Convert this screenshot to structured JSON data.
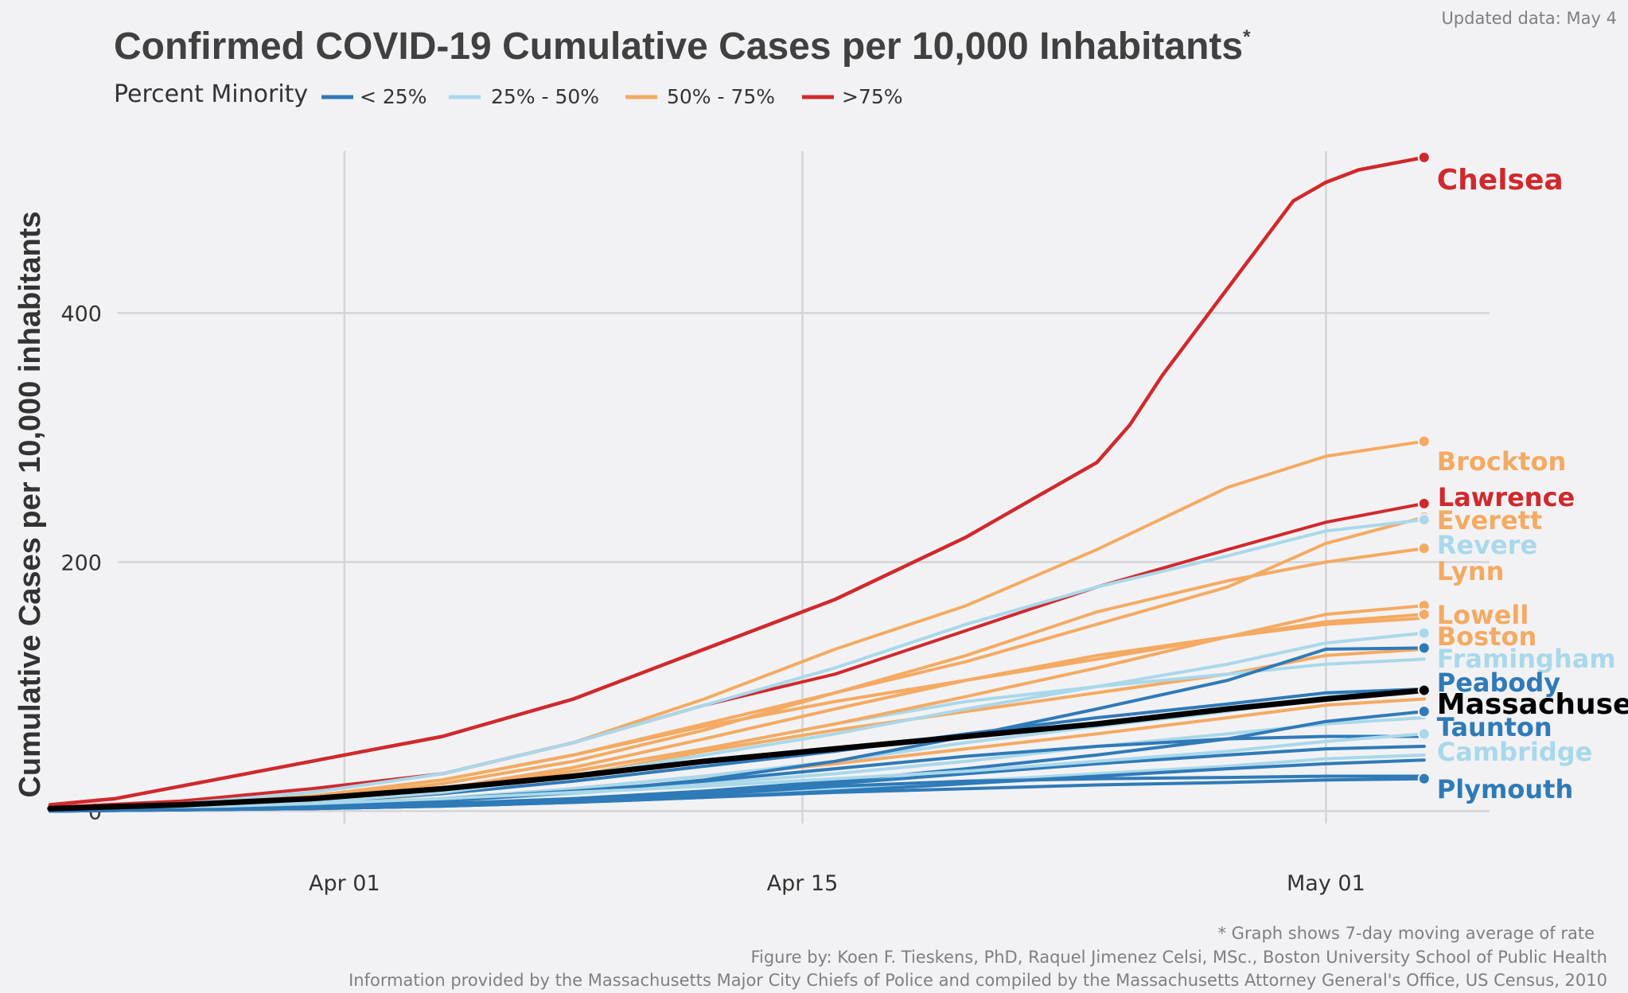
{
  "updated": "Updated data: May 4",
  "title": "Confirmed COVID-19 Cumulative Cases per 10,000 Inhabitants",
  "title_marker": "*",
  "legend": {
    "title": "Percent Minority",
    "entries": [
      {
        "label": "< 25%",
        "color": "#2f7ab8"
      },
      {
        "label": "25% - 50%",
        "color": "#a9d8ea"
      },
      {
        "label": "50% - 75%",
        "color": "#f4aa62"
      },
      {
        "label": ">75%",
        "color": "#d0292d"
      }
    ]
  },
  "footnotes": {
    "line1": "* Graph shows 7-day moving average of rate",
    "line2": "Figure by: Koen F. Tieskens, PhD, Raquel Jimenez Celsi, MSc., Boston University School of Public Health",
    "line3": "Information provided by the Massachusetts Major City Chiefs of Police and compiled by the Massachusetts Attorney General's Office, US Census, 2010"
  },
  "chart_data": {
    "type": "line",
    "title": "Confirmed COVID-19 Cumulative Cases per 10,000 Inhabitants",
    "xlabel": "",
    "ylabel": "Cumulative Cases per 10,000 inhabitants",
    "x_range": [
      "2020-03-25",
      "2020-05-06"
    ],
    "x_ticks": [
      {
        "date": "2020-04-01",
        "label": "Apr 01"
      },
      {
        "date": "2020-04-15",
        "label": "Apr 15"
      },
      {
        "date": "2020-05-01",
        "label": "May 01"
      }
    ],
    "ylim": [
      -10,
      530
    ],
    "y_ticks": [
      0,
      200,
      400
    ],
    "grid": true,
    "legend_position": "top-left",
    "labeled_series": [
      {
        "name": "Chelsea",
        "group": ">75%",
        "color": "#d0292d",
        "x": [
          "2020-03-23",
          "2020-03-25",
          "2020-03-27",
          "2020-03-29",
          "2020-03-31",
          "2020-04-02",
          "2020-04-04",
          "2020-04-06",
          "2020-04-08",
          "2020-04-10",
          "2020-04-12",
          "2020-04-14",
          "2020-04-16",
          "2020-04-18",
          "2020-04-20",
          "2020-04-22",
          "2020-04-24",
          "2020-04-25",
          "2020-04-26",
          "2020-04-28",
          "2020-04-30",
          "2020-05-01",
          "2020-05-02",
          "2020-05-04"
        ],
        "y": [
          5,
          10,
          20,
          30,
          40,
          50,
          60,
          75,
          90,
          110,
          130,
          150,
          170,
          195,
          220,
          250,
          280,
          310,
          350,
          420,
          490,
          505,
          515,
          525
        ]
      },
      {
        "name": "Brockton",
        "group": "50% - 75%",
        "color": "#f4aa62",
        "x": [
          "2020-03-23",
          "2020-03-27",
          "2020-03-31",
          "2020-04-04",
          "2020-04-08",
          "2020-04-12",
          "2020-04-16",
          "2020-04-20",
          "2020-04-24",
          "2020-04-28",
          "2020-05-01",
          "2020-05-04"
        ],
        "y": [
          2,
          6,
          15,
          30,
          55,
          90,
          130,
          165,
          210,
          260,
          285,
          297
        ]
      },
      {
        "name": "Lawrence",
        "group": ">75%",
        "color": "#d0292d",
        "x": [
          "2020-03-23",
          "2020-03-27",
          "2020-03-31",
          "2020-04-04",
          "2020-04-08",
          "2020-04-12",
          "2020-04-16",
          "2020-04-20",
          "2020-04-24",
          "2020-04-28",
          "2020-05-01",
          "2020-05-04"
        ],
        "y": [
          3,
          8,
          18,
          30,
          55,
          85,
          110,
          145,
          180,
          210,
          232,
          247
        ]
      },
      {
        "name": "Everett",
        "group": "50% - 75%",
        "color": "#f4aa62",
        "x": [
          "2020-03-23",
          "2020-03-27",
          "2020-03-31",
          "2020-04-04",
          "2020-04-08",
          "2020-04-12",
          "2020-04-16",
          "2020-04-20",
          "2020-04-24",
          "2020-04-28",
          "2020-05-01",
          "2020-05-04"
        ],
        "y": [
          2,
          5,
          12,
          25,
          45,
          70,
          95,
          120,
          150,
          180,
          215,
          236
        ]
      },
      {
        "name": "Revere",
        "group": "25% - 50%",
        "color": "#a9d8ea",
        "x": [
          "2020-03-23",
          "2020-03-27",
          "2020-03-31",
          "2020-04-04",
          "2020-04-08",
          "2020-04-12",
          "2020-04-16",
          "2020-04-20",
          "2020-04-24",
          "2020-04-28",
          "2020-05-01",
          "2020-05-04"
        ],
        "y": [
          2,
          6,
          15,
          30,
          55,
          85,
          115,
          150,
          180,
          205,
          225,
          234
        ]
      },
      {
        "name": "Lynn",
        "group": "50% - 75%",
        "color": "#f4aa62",
        "x": [
          "2020-03-23",
          "2020-03-27",
          "2020-03-31",
          "2020-04-04",
          "2020-04-08",
          "2020-04-12",
          "2020-04-16",
          "2020-04-20",
          "2020-04-24",
          "2020-04-28",
          "2020-05-01",
          "2020-05-04"
        ],
        "y": [
          2,
          4,
          10,
          22,
          40,
          65,
          95,
          125,
          160,
          185,
          200,
          211
        ]
      },
      {
        "name": "Lowell",
        "group": "50% - 75%",
        "color": "#f4aa62",
        "x": [
          "2020-03-23",
          "2020-03-27",
          "2020-03-31",
          "2020-04-04",
          "2020-04-08",
          "2020-04-12",
          "2020-04-16",
          "2020-04-20",
          "2020-04-24",
          "2020-04-28",
          "2020-05-01",
          "2020-05-04"
        ],
        "y": [
          1,
          3,
          8,
          18,
          32,
          50,
          70,
          92,
          115,
          140,
          158,
          165
        ]
      },
      {
        "name": "Boston",
        "group": "50% - 75%",
        "color": "#f4aa62",
        "x": [
          "2020-03-23",
          "2020-03-27",
          "2020-03-31",
          "2020-04-04",
          "2020-04-08",
          "2020-04-12",
          "2020-04-16",
          "2020-04-20",
          "2020-04-24",
          "2020-04-28",
          "2020-05-01",
          "2020-05-04"
        ],
        "y": [
          2,
          5,
          12,
          25,
          45,
          68,
          88,
          105,
          122,
          140,
          152,
          158
        ]
      },
      {
        "name": "Framingham",
        "group": "25% - 50%",
        "color": "#a9d8ea",
        "x": [
          "2020-03-23",
          "2020-03-27",
          "2020-03-31",
          "2020-04-04",
          "2020-04-08",
          "2020-04-12",
          "2020-04-16",
          "2020-04-20",
          "2020-04-24",
          "2020-04-28",
          "2020-05-01",
          "2020-05-04"
        ],
        "y": [
          1,
          3,
          7,
          15,
          28,
          45,
          62,
          82,
          100,
          118,
          135,
          143
        ]
      },
      {
        "name": "Peabody",
        "group": "< 25%",
        "color": "#2f7ab8",
        "x": [
          "2020-03-23",
          "2020-03-27",
          "2020-03-31",
          "2020-04-04",
          "2020-04-08",
          "2020-04-12",
          "2020-04-16",
          "2020-04-20",
          "2020-04-24",
          "2020-04-28",
          "2020-05-01",
          "2020-05-04"
        ],
        "y": [
          0,
          2,
          4,
          8,
          15,
          25,
          40,
          60,
          82,
          105,
          130,
          131
        ]
      },
      {
        "name": "Massachusetts",
        "group": "",
        "color": "#000000",
        "x": [
          "2020-03-23",
          "2020-03-27",
          "2020-03-31",
          "2020-04-04",
          "2020-04-08",
          "2020-04-12",
          "2020-04-16",
          "2020-04-20",
          "2020-04-24",
          "2020-04-28",
          "2020-05-01",
          "2020-05-04"
        ],
        "y": [
          2,
          5,
          10,
          18,
          28,
          40,
          50,
          60,
          70,
          82,
          90,
          97
        ]
      },
      {
        "name": "Taunton",
        "group": "< 25%",
        "color": "#2f7ab8",
        "x": [
          "2020-03-23",
          "2020-03-27",
          "2020-03-31",
          "2020-04-04",
          "2020-04-08",
          "2020-04-12",
          "2020-04-16",
          "2020-04-20",
          "2020-04-24",
          "2020-04-28",
          "2020-05-01",
          "2020-05-04"
        ],
        "y": [
          0,
          1,
          2,
          5,
          10,
          16,
          24,
          34,
          45,
          58,
          72,
          80
        ]
      },
      {
        "name": "Cambridge",
        "group": "25% - 50%",
        "color": "#a9d8ea",
        "x": [
          "2020-03-23",
          "2020-03-27",
          "2020-03-31",
          "2020-04-04",
          "2020-04-08",
          "2020-04-12",
          "2020-04-16",
          "2020-04-20",
          "2020-04-24",
          "2020-04-28",
          "2020-05-01",
          "2020-05-04"
        ],
        "y": [
          1,
          3,
          6,
          10,
          15,
          20,
          26,
          32,
          40,
          48,
          56,
          62
        ]
      },
      {
        "name": "Plymouth",
        "group": "< 25%",
        "color": "#2f7ab8",
        "x": [
          "2020-03-23",
          "2020-03-27",
          "2020-03-31",
          "2020-04-04",
          "2020-04-08",
          "2020-04-12",
          "2020-04-16",
          "2020-04-20",
          "2020-04-24",
          "2020-04-28",
          "2020-05-01",
          "2020-05-04"
        ],
        "y": [
          0,
          1,
          2,
          4,
          7,
          11,
          15,
          18,
          21,
          23,
          25,
          26
        ]
      }
    ],
    "unlabeled_series": [
      {
        "group": "50% - 75%",
        "color": "#f4aa62",
        "x": [
          "2020-03-23",
          "2020-03-27",
          "2020-03-31",
          "2020-04-04",
          "2020-04-08",
          "2020-04-12",
          "2020-04-16",
          "2020-04-20",
          "2020-04-24",
          "2020-04-28",
          "2020-05-01",
          "2020-05-04"
        ],
        "y": [
          1,
          3,
          8,
          18,
          35,
          58,
          82,
          105,
          125,
          140,
          150,
          155
        ]
      },
      {
        "group": "50% - 75%",
        "color": "#f4aa62",
        "x": [
          "2020-03-23",
          "2020-03-27",
          "2020-03-31",
          "2020-04-04",
          "2020-04-08",
          "2020-04-12",
          "2020-04-16",
          "2020-04-20",
          "2020-04-24",
          "2020-04-28",
          "2020-05-01",
          "2020-05-04"
        ],
        "y": [
          1,
          2,
          6,
          14,
          28,
          48,
          65,
          80,
          95,
          110,
          125,
          130
        ]
      },
      {
        "group": "50% - 75%",
        "color": "#f4aa62",
        "x": [
          "2020-03-23",
          "2020-03-27",
          "2020-03-31",
          "2020-04-04",
          "2020-04-08",
          "2020-04-12",
          "2020-04-16",
          "2020-04-20",
          "2020-04-24",
          "2020-04-28",
          "2020-05-01",
          "2020-05-04"
        ],
        "y": [
          1,
          2,
          5,
          10,
          18,
          28,
          38,
          50,
          62,
          75,
          85,
          90
        ]
      },
      {
        "group": "25% - 50%",
        "color": "#a9d8ea",
        "x": [
          "2020-03-23",
          "2020-03-27",
          "2020-03-31",
          "2020-04-04",
          "2020-04-08",
          "2020-04-12",
          "2020-04-16",
          "2020-04-20",
          "2020-04-24",
          "2020-04-28",
          "2020-05-01",
          "2020-05-04"
        ],
        "y": [
          1,
          3,
          8,
          18,
          32,
          50,
          70,
          88,
          100,
          110,
          118,
          122
        ]
      },
      {
        "group": "25% - 50%",
        "color": "#a9d8ea",
        "x": [
          "2020-03-23",
          "2020-03-27",
          "2020-03-31",
          "2020-04-04",
          "2020-04-08",
          "2020-04-12",
          "2020-04-16",
          "2020-04-20",
          "2020-04-24",
          "2020-04-28",
          "2020-05-01",
          "2020-05-04"
        ],
        "y": [
          1,
          2,
          5,
          10,
          18,
          28,
          40,
          55,
          68,
          80,
          92,
          98
        ]
      },
      {
        "group": "25% - 50%",
        "color": "#a9d8ea",
        "x": [
          "2020-03-23",
          "2020-03-27",
          "2020-03-31",
          "2020-04-04",
          "2020-04-08",
          "2020-04-12",
          "2020-04-16",
          "2020-04-20",
          "2020-04-24",
          "2020-04-28",
          "2020-05-01",
          "2020-05-04"
        ],
        "y": [
          0,
          2,
          4,
          8,
          14,
          22,
          30,
          40,
          52,
          62,
          70,
          75
        ]
      },
      {
        "group": "25% - 50%",
        "color": "#a9d8ea",
        "x": [
          "2020-03-23",
          "2020-03-27",
          "2020-03-31",
          "2020-04-04",
          "2020-04-08",
          "2020-04-12",
          "2020-04-16",
          "2020-04-20",
          "2020-04-24",
          "2020-04-28",
          "2020-05-01",
          "2020-05-04"
        ],
        "y": [
          0,
          1,
          3,
          6,
          10,
          16,
          22,
          30,
          38,
          45,
          50,
          52
        ]
      },
      {
        "group": "25% - 50%",
        "color": "#a9d8ea",
        "x": [
          "2020-03-23",
          "2020-03-27",
          "2020-03-31",
          "2020-04-04",
          "2020-04-08",
          "2020-04-12",
          "2020-04-16",
          "2020-04-20",
          "2020-04-24",
          "2020-04-28",
          "2020-05-01",
          "2020-05-04"
        ],
        "y": [
          0,
          1,
          2,
          4,
          7,
          12,
          18,
          24,
          30,
          36,
          42,
          45
        ]
      },
      {
        "group": "< 25%",
        "color": "#2f7ab8",
        "x": [
          "2020-03-23",
          "2020-03-27",
          "2020-03-31",
          "2020-04-04",
          "2020-04-08",
          "2020-04-12",
          "2020-04-16",
          "2020-04-20",
          "2020-04-24",
          "2020-04-28",
          "2020-05-01",
          "2020-05-04"
        ],
        "y": [
          1,
          3,
          7,
          14,
          24,
          36,
          48,
          62,
          75,
          86,
          95,
          98
        ]
      },
      {
        "group": "< 25%",
        "color": "#2f7ab8",
        "x": [
          "2020-03-23",
          "2020-03-27",
          "2020-03-31",
          "2020-04-04",
          "2020-04-08",
          "2020-04-12",
          "2020-04-16",
          "2020-04-20",
          "2020-04-24",
          "2020-04-28",
          "2020-05-01",
          "2020-05-04"
        ],
        "y": [
          0,
          2,
          5,
          10,
          16,
          24,
          34,
          44,
          52,
          58,
          60,
          60
        ]
      },
      {
        "group": "< 25%",
        "color": "#2f7ab8",
        "x": [
          "2020-03-23",
          "2020-03-27",
          "2020-03-31",
          "2020-04-04",
          "2020-04-08",
          "2020-04-12",
          "2020-04-16",
          "2020-04-20",
          "2020-04-24",
          "2020-04-28",
          "2020-05-01",
          "2020-05-04"
        ],
        "y": [
          0,
          1,
          3,
          6,
          10,
          15,
          22,
          30,
          38,
          45,
          50,
          52
        ]
      },
      {
        "group": "< 25%",
        "color": "#2f7ab8",
        "x": [
          "2020-03-23",
          "2020-03-27",
          "2020-03-31",
          "2020-04-04",
          "2020-04-08",
          "2020-04-12",
          "2020-04-16",
          "2020-04-20",
          "2020-04-24",
          "2020-04-28",
          "2020-05-01",
          "2020-05-04"
        ],
        "y": [
          0,
          1,
          2,
          4,
          7,
          11,
          16,
          22,
          28,
          34,
          38,
          41
        ]
      },
      {
        "group": "< 25%",
        "color": "#2f7ab8",
        "x": [
          "2020-03-23",
          "2020-03-27",
          "2020-03-31",
          "2020-04-04",
          "2020-04-08",
          "2020-04-12",
          "2020-04-16",
          "2020-04-20",
          "2020-04-24",
          "2020-04-28",
          "2020-05-01",
          "2020-05-04"
        ],
        "y": [
          0,
          1,
          2,
          4,
          8,
          13,
          20,
          24,
          26,
          27,
          28,
          28
        ]
      }
    ]
  }
}
